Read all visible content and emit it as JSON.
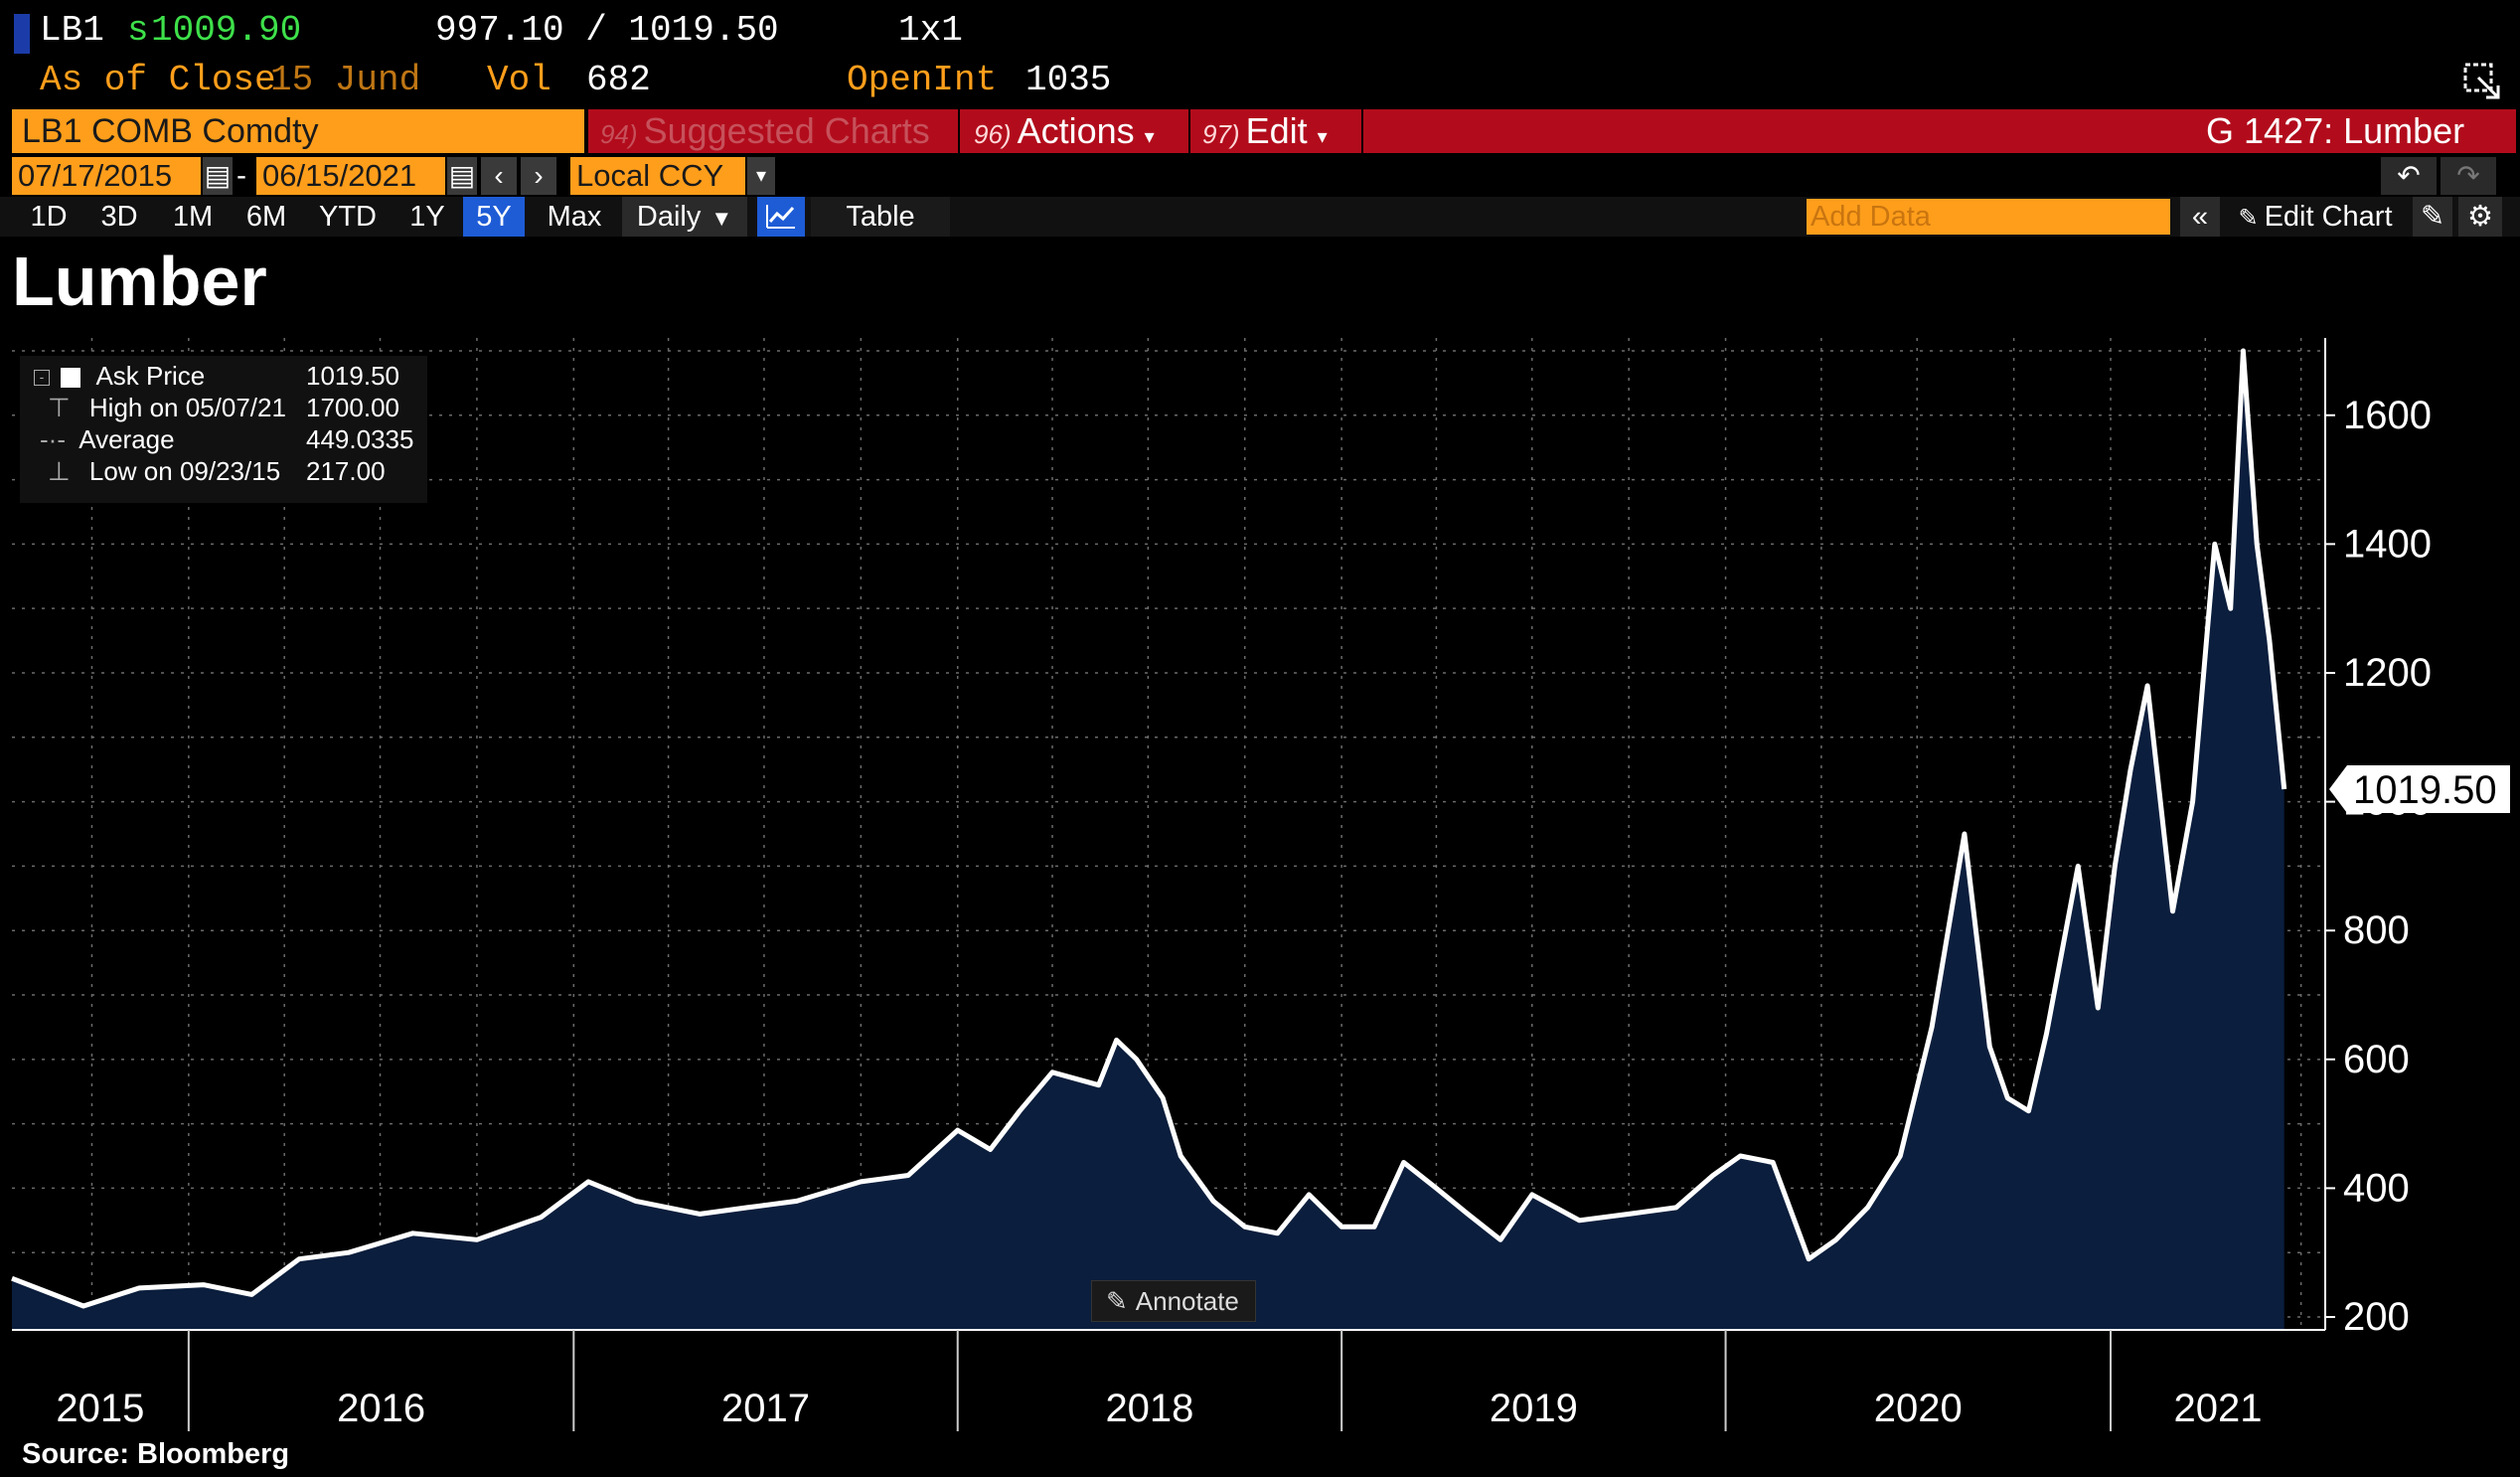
{
  "quote": {
    "ticker": "LB1",
    "last_prefix": "s",
    "last": "1009.90",
    "bid_ask": "997.10 / 1019.50",
    "size": "1x1",
    "as_of": "As of Close",
    "as_of_date": "15 Jund",
    "vol_label": "Vol",
    "vol": "682",
    "oi_label": "OpenInt",
    "oi": "1035"
  },
  "command": {
    "security": "LB1 COMB Comdty",
    "suggested_num": "94)",
    "suggested": "Suggested Charts",
    "actions_num": "96)",
    "actions": "Actions",
    "edit_num": "97)",
    "edit": "Edit",
    "function": "G 1427: Lumber"
  },
  "dates": {
    "start": "07/17/2015",
    "separator": "-",
    "end": "06/15/2021",
    "currency": "Local CCY"
  },
  "ranges": [
    "1D",
    "3D",
    "1M",
    "6M",
    "YTD",
    "1Y",
    "5Y",
    "Max"
  ],
  "active_range": "5Y",
  "frequency": "Daily",
  "table_label": "Table",
  "add_data_placeholder": "Add Data",
  "edit_chart_label": "Edit Chart",
  "annotate_label": "Annotate",
  "source": "Source:  Bloomberg",
  "legend": {
    "series": "Ask Price",
    "series_value": "1019.50",
    "high_label": "High on 05/07/21",
    "high_value": "1700.00",
    "avg_label": "Average",
    "avg_value": "449.0335",
    "low_label": "Low on 09/23/15",
    "low_value": "217.00"
  },
  "colors": {
    "background": "#000000",
    "line": "#ffffff",
    "area": "#0b1e3d",
    "orange": "#ff9e1b",
    "red_bar": "#b20c1c",
    "active_blue": "#1e5cd6",
    "quote_green": "#3ee04a",
    "quote_orange": "#ff9e1b"
  },
  "chart_data": {
    "type": "area",
    "title": "Lumber",
    "ylim": [
      180,
      1720
    ],
    "y_ticks": [
      200,
      400,
      600,
      800,
      1000,
      1200,
      1400,
      1600
    ],
    "x_tick_labels": [
      "2015",
      "2016",
      "2017",
      "2018",
      "2019",
      "2020",
      "2021"
    ],
    "last_value_label": "1019.50",
    "grid": true,
    "series": [
      {
        "name": "Ask Price",
        "x": [
          "2015-07-17",
          "2015-09-23",
          "2015-11-15",
          "2016-01-15",
          "2016-03-01",
          "2016-04-15",
          "2016-06-01",
          "2016-08-01",
          "2016-10-01",
          "2016-12-01",
          "2017-01-15",
          "2017-03-01",
          "2017-05-01",
          "2017-06-15",
          "2017-08-01",
          "2017-10-01",
          "2017-11-15",
          "2018-01-01",
          "2018-02-01",
          "2018-03-01",
          "2018-04-01",
          "2018-05-15",
          "2018-06-01",
          "2018-06-20",
          "2018-07-15",
          "2018-08-01",
          "2018-09-01",
          "2018-10-01",
          "2018-11-01",
          "2018-12-01",
          "2019-01-01",
          "2019-02-01",
          "2019-03-01",
          "2019-04-01",
          "2019-05-01",
          "2019-06-01",
          "2019-07-01",
          "2019-08-15",
          "2019-10-01",
          "2019-11-15",
          "2019-12-20",
          "2020-01-15",
          "2020-02-15",
          "2020-03-20",
          "2020-04-15",
          "2020-05-15",
          "2020-06-15",
          "2020-07-15",
          "2020-08-15",
          "2020-09-08",
          "2020-09-25",
          "2020-10-15",
          "2020-11-01",
          "2020-12-01",
          "2020-12-20",
          "2021-01-05",
          "2021-01-20",
          "2021-02-05",
          "2021-03-01",
          "2021-03-20",
          "2021-04-10",
          "2021-04-25",
          "2021-05-07",
          "2021-05-20",
          "2021-06-01",
          "2021-06-15"
        ],
        "values": [
          260,
          217,
          245,
          250,
          235,
          290,
          300,
          330,
          320,
          355,
          410,
          380,
          360,
          370,
          380,
          410,
          420,
          490,
          460,
          520,
          580,
          560,
          630,
          600,
          540,
          450,
          380,
          340,
          330,
          390,
          340,
          340,
          440,
          400,
          360,
          320,
          390,
          350,
          360,
          370,
          420,
          450,
          440,
          290,
          320,
          370,
          450,
          650,
          950,
          620,
          540,
          520,
          640,
          900,
          680,
          900,
          1050,
          1180,
          830,
          1000,
          1400,
          1300,
          1700,
          1400,
          1250,
          1019.5
        ]
      }
    ]
  }
}
